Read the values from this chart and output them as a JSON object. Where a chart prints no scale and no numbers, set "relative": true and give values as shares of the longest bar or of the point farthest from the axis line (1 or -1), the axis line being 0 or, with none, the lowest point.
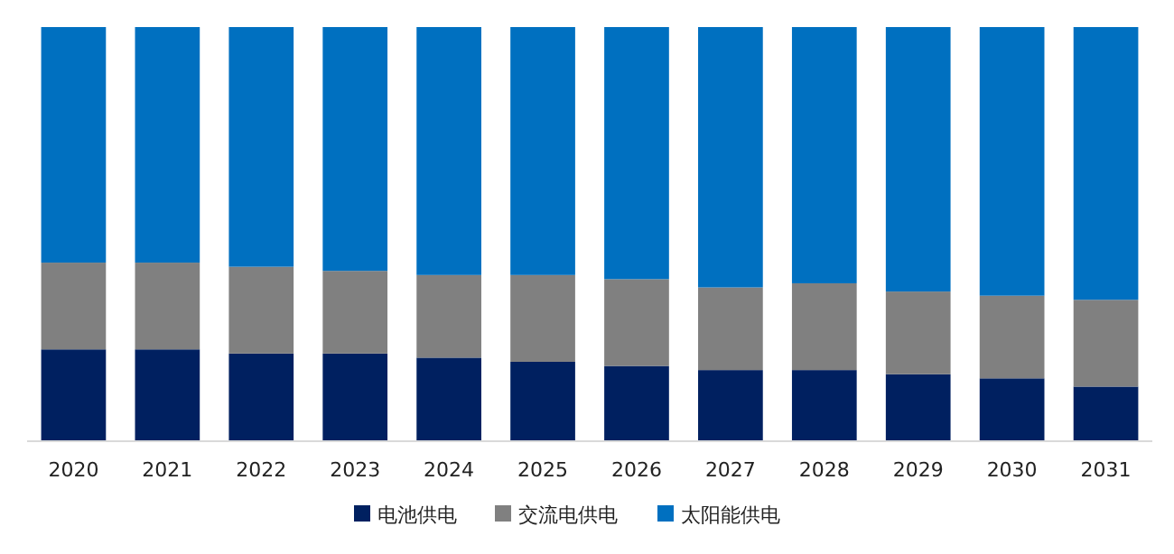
{
  "chart_data": {
    "type": "bar",
    "stacked": true,
    "relative": true,
    "categories": [
      "2020",
      "2021",
      "2022",
      "2023",
      "2024",
      "2025",
      "2026",
      "2027",
      "2028",
      "2029",
      "2030",
      "2031"
    ],
    "series": [
      {
        "name": "电池供电",
        "color": "#002060",
        "values": [
          0.22,
          0.22,
          0.21,
          0.21,
          0.2,
          0.19,
          0.18,
          0.17,
          0.17,
          0.16,
          0.15,
          0.13
        ]
      },
      {
        "name": "交流电供电",
        "color": "#808080",
        "values": [
          0.21,
          0.21,
          0.21,
          0.2,
          0.2,
          0.21,
          0.21,
          0.2,
          0.21,
          0.2,
          0.2,
          0.21
        ]
      },
      {
        "name": "太阳能供电",
        "color": "#0070c0",
        "values": [
          0.57,
          0.57,
          0.58,
          0.59,
          0.6,
          0.6,
          0.61,
          0.63,
          0.62,
          0.64,
          0.65,
          0.66
        ]
      }
    ],
    "legend": "bottom"
  }
}
